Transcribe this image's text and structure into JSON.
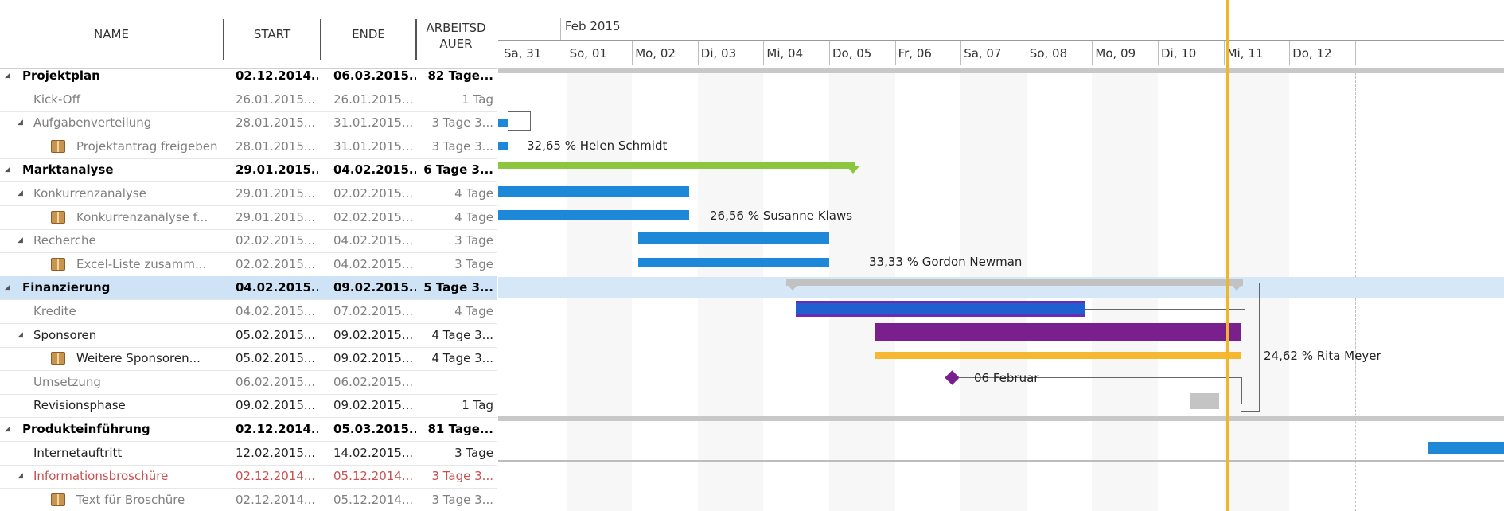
{
  "columns": {
    "name": "NAME",
    "start": "START",
    "end": "ENDE",
    "duration": "ARBEITSD AUER"
  },
  "timeline": {
    "month": "Feb 2015",
    "days": [
      "Sa, 31",
      "So, 01",
      "Mo, 02",
      "Di, 03",
      "Mi, 04",
      "Do, 05",
      "Fr, 06",
      "Sa, 07",
      "So, 08",
      "Mo, 09",
      "Di, 10",
      "Mi, 11",
      "Do, 12"
    ]
  },
  "tasks": [
    {
      "name": "Projektplan",
      "start": "02.12.2014...",
      "end": "06.03.2015...",
      "duration": "82 Tage...",
      "level": 0,
      "style": "bold",
      "expand": "yes"
    },
    {
      "name": "Kick-Off",
      "start": "26.01.2015...",
      "end": "26.01.2015...",
      "duration": "1 Tag",
      "level": 1,
      "style": "gray"
    },
    {
      "name": "Aufgabenverteilung",
      "start": "28.01.2015...",
      "end": "31.01.2015...",
      "duration": "3 Tage 3...",
      "level": 1,
      "style": "gray",
      "expand": "yes"
    },
    {
      "name": "Projektantrag freigeben",
      "start": "28.01.2015...",
      "end": "31.01.2015...",
      "duration": "3 Tage 3...",
      "level": 2,
      "style": "gray",
      "icon": "package"
    },
    {
      "name": "Marktanalyse",
      "start": "29.01.2015...",
      "end": "04.02.2015...",
      "duration": "6 Tage 3...",
      "level": 0,
      "style": "bold",
      "expand": "yes"
    },
    {
      "name": "Konkurrenzanalyse",
      "start": "29.01.2015...",
      "end": "02.02.2015...",
      "duration": "4 Tage",
      "level": 1,
      "style": "gray",
      "expand": "yes"
    },
    {
      "name": "Konkurrenzanalyse f...",
      "start": "29.01.2015...",
      "end": "02.02.2015...",
      "duration": "4 Tage",
      "level": 2,
      "style": "gray",
      "icon": "package"
    },
    {
      "name": "Recherche",
      "start": "02.02.2015...",
      "end": "04.02.2015...",
      "duration": "3 Tage",
      "level": 1,
      "style": "gray",
      "expand": "yes"
    },
    {
      "name": "Excel-Liste zusamm...",
      "start": "02.02.2015...",
      "end": "04.02.2015...",
      "duration": "3 Tage",
      "level": 2,
      "style": "gray",
      "icon": "package"
    },
    {
      "name": "Finanzierung",
      "start": "04.02.2015...",
      "end": "09.02.2015...",
      "duration": "5 Tage 3...",
      "level": 0,
      "style": "bold",
      "expand": "yes",
      "selected": true
    },
    {
      "name": "Kredite",
      "start": "04.02.2015...",
      "end": "07.02.2015...",
      "duration": "4 Tage",
      "level": 1,
      "style": "gray"
    },
    {
      "name": "Sponsoren",
      "start": "05.02.2015...",
      "end": "09.02.2015...",
      "duration": "4 Tage 3...",
      "level": 1,
      "style": "dark",
      "expand": "yes"
    },
    {
      "name": "Weitere Sponsoren...",
      "start": "05.02.2015...",
      "end": "09.02.2015...",
      "duration": "4 Tage 3...",
      "level": 2,
      "style": "dark",
      "icon": "package"
    },
    {
      "name": "Umsetzung",
      "start": "06.02.2015...",
      "end": "06.02.2015...",
      "duration": "",
      "level": 1,
      "style": "gray"
    },
    {
      "name": "Revisionsphase",
      "start": "09.02.2015...",
      "end": "09.02.2015...",
      "duration": "1 Tag",
      "level": 1,
      "style": "dark"
    },
    {
      "name": "Produkteinführung",
      "start": "02.12.2014...",
      "end": "05.03.2015...",
      "duration": "81 Tage...",
      "level": 0,
      "style": "bold",
      "expand": "yes"
    },
    {
      "name": "Internetauftritt",
      "start": "12.02.2015...",
      "end": "14.02.2015...",
      "duration": "3 Tage",
      "level": 1,
      "style": "dark"
    },
    {
      "name": "Informationsbroschüre",
      "start": "02.12.2014...",
      "end": "05.12.2014...",
      "duration": "3 Tage 3...",
      "level": 1,
      "style": "red",
      "expand": "yes"
    },
    {
      "name": "Text für Broschüre",
      "start": "02.12.2014...",
      "end": "05.12.2014...",
      "duration": "3 Tage 3...",
      "level": 2,
      "style": "gray",
      "icon": "package"
    }
  ],
  "chart_labels": {
    "helen": "32,65 % Helen Schmidt",
    "susanne": "26,56 % Susanne Klaws",
    "gordon": "33,33 % Gordon Newman",
    "rita": "24,62 % Rita Meyer",
    "milestone": "06 Februar"
  },
  "colors": {
    "today": "#f0b528",
    "blue": "#1e88d8",
    "green": "#8cc63f",
    "purple": "#7a1f8e",
    "orange": "#f5b830",
    "summary": "#c4c4c4"
  }
}
